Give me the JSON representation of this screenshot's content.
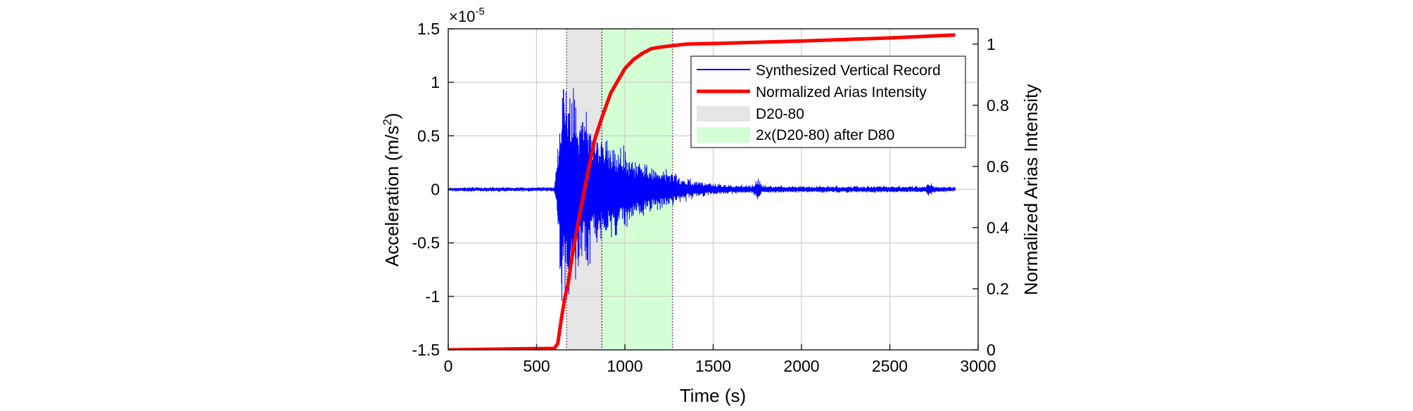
{
  "chart_data": {
    "type": "line",
    "xlabel": "Time (s)",
    "ylabel_left": "Acceleration (m/s",
    "ylabel_left_sup": "2",
    "ylabel_left_end": ")",
    "ylabel_right": "Normalized Arias Intensity",
    "xlim": [
      0,
      3000
    ],
    "ylim_left": [
      -1.5,
      1.5
    ],
    "ylim_right": [
      0,
      1.05
    ],
    "y_exponent_base": "×10",
    "y_exponent_power": "-5",
    "x_ticks": [
      "0",
      "500",
      "1000",
      "1500",
      "2000",
      "2500",
      "3000"
    ],
    "y_left_ticks": [
      "1.5",
      "1",
      "0.5",
      "0",
      "-0.5",
      "-1",
      "-1.5"
    ],
    "y_right_ticks": [
      "1",
      "0.8",
      "0.6",
      "0.4",
      "0.2",
      "0"
    ],
    "grid": true,
    "legend_position": "upper-right",
    "legend": [
      {
        "label": "Synthesized Vertical Record",
        "color": "#0000ff",
        "kind": "thin-line"
      },
      {
        "label": "Normalized Arias Intensity",
        "color": "#ff0000",
        "kind": "thick-line"
      },
      {
        "label": "D20-80",
        "color": "#e5e5e5",
        "kind": "patch"
      },
      {
        "label": "2x(D20-80) after D80",
        "color": "#d4ffd4",
        "kind": "patch"
      }
    ],
    "shaded_regions": [
      {
        "name": "D20-80",
        "x_start": 670,
        "x_end": 870,
        "color": "#e5e5e5"
      },
      {
        "name": "2x(D20-80) after D80",
        "x_start": 870,
        "x_end": 1270,
        "color": "#d4ffd4"
      }
    ],
    "series": [
      {
        "name": "Synthesized Vertical Record",
        "color": "#0000ff",
        "axis": "left",
        "envelope": {
          "x": [
            0,
            600,
            615,
            640,
            670,
            700,
            750,
            800,
            870,
            950,
            1050,
            1150,
            1270,
            1350,
            1450,
            1600,
            1720,
            1750,
            1780,
            1900,
            2200,
            2500,
            2700,
            2720,
            2750,
            2870
          ],
          "amplitude": [
            0.02,
            0.02,
            0.25,
            1.05,
            1.0,
            0.9,
            0.75,
            0.62,
            0.5,
            0.42,
            0.3,
            0.22,
            0.15,
            0.1,
            0.06,
            0.04,
            0.04,
            0.1,
            0.04,
            0.03,
            0.03,
            0.03,
            0.03,
            0.08,
            0.03,
            0.02
          ]
        }
      },
      {
        "name": "Normalized Arias Intensity",
        "color": "#ff0000",
        "axis": "right",
        "x": [
          0,
          600,
          620,
          640,
          660,
          680,
          700,
          740,
          780,
          830,
          870,
          920,
          1000,
          1050,
          1100,
          1150,
          1200,
          1270,
          1350,
          1500,
          2000,
          2500,
          2870
        ],
        "y": [
          0,
          0.005,
          0.02,
          0.1,
          0.17,
          0.22,
          0.3,
          0.43,
          0.55,
          0.69,
          0.76,
          0.84,
          0.92,
          0.95,
          0.97,
          0.985,
          0.99,
          0.995,
          1.0,
          1.002,
          1.01,
          1.02,
          1.03
        ]
      }
    ]
  }
}
